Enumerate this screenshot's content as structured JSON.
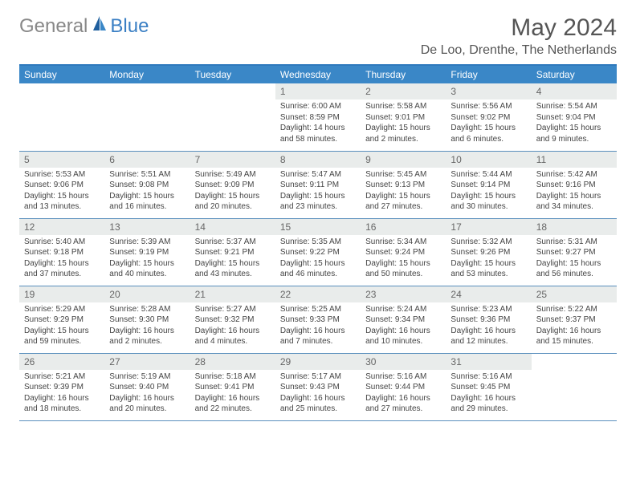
{
  "logo": {
    "general": "General",
    "blue": "Blue"
  },
  "title": "May 2024",
  "location": "De Loo, Drenthe, The Netherlands",
  "colors": {
    "header_bar": "#3a87c7",
    "header_text": "#ffffff",
    "daynum_bg": "#e9eceb",
    "daynum_text": "#666666",
    "row_border": "#5a8fbd",
    "logo_blue": "#3a7fc4",
    "logo_gray": "#888888",
    "body_text": "#444444"
  },
  "weekdays": [
    "Sunday",
    "Monday",
    "Tuesday",
    "Wednesday",
    "Thursday",
    "Friday",
    "Saturday"
  ],
  "grid": [
    [
      null,
      null,
      null,
      {
        "n": "1",
        "sr": "Sunrise: 6:00 AM",
        "ss": "Sunset: 8:59 PM",
        "dl": "Daylight: 14 hours and 58 minutes."
      },
      {
        "n": "2",
        "sr": "Sunrise: 5:58 AM",
        "ss": "Sunset: 9:01 PM",
        "dl": "Daylight: 15 hours and 2 minutes."
      },
      {
        "n": "3",
        "sr": "Sunrise: 5:56 AM",
        "ss": "Sunset: 9:02 PM",
        "dl": "Daylight: 15 hours and 6 minutes."
      },
      {
        "n": "4",
        "sr": "Sunrise: 5:54 AM",
        "ss": "Sunset: 9:04 PM",
        "dl": "Daylight: 15 hours and 9 minutes."
      }
    ],
    [
      {
        "n": "5",
        "sr": "Sunrise: 5:53 AM",
        "ss": "Sunset: 9:06 PM",
        "dl": "Daylight: 15 hours and 13 minutes."
      },
      {
        "n": "6",
        "sr": "Sunrise: 5:51 AM",
        "ss": "Sunset: 9:08 PM",
        "dl": "Daylight: 15 hours and 16 minutes."
      },
      {
        "n": "7",
        "sr": "Sunrise: 5:49 AM",
        "ss": "Sunset: 9:09 PM",
        "dl": "Daylight: 15 hours and 20 minutes."
      },
      {
        "n": "8",
        "sr": "Sunrise: 5:47 AM",
        "ss": "Sunset: 9:11 PM",
        "dl": "Daylight: 15 hours and 23 minutes."
      },
      {
        "n": "9",
        "sr": "Sunrise: 5:45 AM",
        "ss": "Sunset: 9:13 PM",
        "dl": "Daylight: 15 hours and 27 minutes."
      },
      {
        "n": "10",
        "sr": "Sunrise: 5:44 AM",
        "ss": "Sunset: 9:14 PM",
        "dl": "Daylight: 15 hours and 30 minutes."
      },
      {
        "n": "11",
        "sr": "Sunrise: 5:42 AM",
        "ss": "Sunset: 9:16 PM",
        "dl": "Daylight: 15 hours and 34 minutes."
      }
    ],
    [
      {
        "n": "12",
        "sr": "Sunrise: 5:40 AM",
        "ss": "Sunset: 9:18 PM",
        "dl": "Daylight: 15 hours and 37 minutes."
      },
      {
        "n": "13",
        "sr": "Sunrise: 5:39 AM",
        "ss": "Sunset: 9:19 PM",
        "dl": "Daylight: 15 hours and 40 minutes."
      },
      {
        "n": "14",
        "sr": "Sunrise: 5:37 AM",
        "ss": "Sunset: 9:21 PM",
        "dl": "Daylight: 15 hours and 43 minutes."
      },
      {
        "n": "15",
        "sr": "Sunrise: 5:35 AM",
        "ss": "Sunset: 9:22 PM",
        "dl": "Daylight: 15 hours and 46 minutes."
      },
      {
        "n": "16",
        "sr": "Sunrise: 5:34 AM",
        "ss": "Sunset: 9:24 PM",
        "dl": "Daylight: 15 hours and 50 minutes."
      },
      {
        "n": "17",
        "sr": "Sunrise: 5:32 AM",
        "ss": "Sunset: 9:26 PM",
        "dl": "Daylight: 15 hours and 53 minutes."
      },
      {
        "n": "18",
        "sr": "Sunrise: 5:31 AM",
        "ss": "Sunset: 9:27 PM",
        "dl": "Daylight: 15 hours and 56 minutes."
      }
    ],
    [
      {
        "n": "19",
        "sr": "Sunrise: 5:29 AM",
        "ss": "Sunset: 9:29 PM",
        "dl": "Daylight: 15 hours and 59 minutes."
      },
      {
        "n": "20",
        "sr": "Sunrise: 5:28 AM",
        "ss": "Sunset: 9:30 PM",
        "dl": "Daylight: 16 hours and 2 minutes."
      },
      {
        "n": "21",
        "sr": "Sunrise: 5:27 AM",
        "ss": "Sunset: 9:32 PM",
        "dl": "Daylight: 16 hours and 4 minutes."
      },
      {
        "n": "22",
        "sr": "Sunrise: 5:25 AM",
        "ss": "Sunset: 9:33 PM",
        "dl": "Daylight: 16 hours and 7 minutes."
      },
      {
        "n": "23",
        "sr": "Sunrise: 5:24 AM",
        "ss": "Sunset: 9:34 PM",
        "dl": "Daylight: 16 hours and 10 minutes."
      },
      {
        "n": "24",
        "sr": "Sunrise: 5:23 AM",
        "ss": "Sunset: 9:36 PM",
        "dl": "Daylight: 16 hours and 12 minutes."
      },
      {
        "n": "25",
        "sr": "Sunrise: 5:22 AM",
        "ss": "Sunset: 9:37 PM",
        "dl": "Daylight: 16 hours and 15 minutes."
      }
    ],
    [
      {
        "n": "26",
        "sr": "Sunrise: 5:21 AM",
        "ss": "Sunset: 9:39 PM",
        "dl": "Daylight: 16 hours and 18 minutes."
      },
      {
        "n": "27",
        "sr": "Sunrise: 5:19 AM",
        "ss": "Sunset: 9:40 PM",
        "dl": "Daylight: 16 hours and 20 minutes."
      },
      {
        "n": "28",
        "sr": "Sunrise: 5:18 AM",
        "ss": "Sunset: 9:41 PM",
        "dl": "Daylight: 16 hours and 22 minutes."
      },
      {
        "n": "29",
        "sr": "Sunrise: 5:17 AM",
        "ss": "Sunset: 9:43 PM",
        "dl": "Daylight: 16 hours and 25 minutes."
      },
      {
        "n": "30",
        "sr": "Sunrise: 5:16 AM",
        "ss": "Sunset: 9:44 PM",
        "dl": "Daylight: 16 hours and 27 minutes."
      },
      {
        "n": "31",
        "sr": "Sunrise: 5:16 AM",
        "ss": "Sunset: 9:45 PM",
        "dl": "Daylight: 16 hours and 29 minutes."
      },
      null
    ]
  ]
}
